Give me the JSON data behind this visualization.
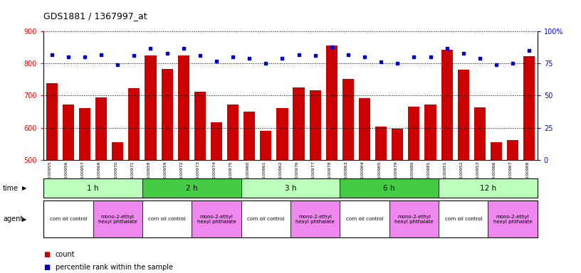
{
  "title": "GDS1881 / 1367997_at",
  "samples": [
    "GSM100955",
    "GSM100956",
    "GSM100957",
    "GSM100969",
    "GSM100970",
    "GSM100971",
    "GSM100958",
    "GSM100959",
    "GSM100972",
    "GSM100973",
    "GSM100974",
    "GSM100975",
    "GSM100960",
    "GSM100961",
    "GSM100962",
    "GSM100976",
    "GSM100977",
    "GSM100978",
    "GSM100963",
    "GSM100964",
    "GSM100965",
    "GSM100979",
    "GSM100980",
    "GSM100981",
    "GSM100951",
    "GSM100952",
    "GSM100953",
    "GSM100966",
    "GSM100967",
    "GSM100968"
  ],
  "counts": [
    738,
    672,
    661,
    695,
    554,
    724,
    826,
    782,
    826,
    712,
    616,
    671,
    649,
    590,
    661,
    726,
    717,
    857,
    751,
    691,
    604,
    597,
    666,
    672,
    843,
    780,
    663,
    554,
    562,
    822
  ],
  "percentiles": [
    82,
    80,
    80,
    82,
    74,
    81,
    87,
    83,
    87,
    81,
    77,
    80,
    79,
    75,
    79,
    82,
    81,
    88,
    82,
    80,
    76,
    75,
    80,
    80,
    87,
    83,
    79,
    74,
    75,
    85
  ],
  "time_groups": [
    {
      "label": "1 h",
      "start": 0,
      "end": 6
    },
    {
      "label": "2 h",
      "start": 6,
      "end": 12
    },
    {
      "label": "3 h",
      "start": 12,
      "end": 18
    },
    {
      "label": "6 h",
      "start": 18,
      "end": 24
    },
    {
      "label": "12 h",
      "start": 24,
      "end": 30
    }
  ],
  "agent_groups": [
    {
      "label": "corn oil control",
      "start": 0,
      "end": 3,
      "color": "#ffffff"
    },
    {
      "label": "mono-2-ethyl\nhexyl phthalate",
      "start": 3,
      "end": 6,
      "color": "#ee88ee"
    },
    {
      "label": "corn oil control",
      "start": 6,
      "end": 9,
      "color": "#ffffff"
    },
    {
      "label": "mono-2-ethyl\nhexyl phthalate",
      "start": 9,
      "end": 12,
      "color": "#ee88ee"
    },
    {
      "label": "corn oil control",
      "start": 12,
      "end": 15,
      "color": "#ffffff"
    },
    {
      "label": "mono-2-ethyl\nhexyl phthalate",
      "start": 15,
      "end": 18,
      "color": "#ee88ee"
    },
    {
      "label": "corn oil control",
      "start": 18,
      "end": 21,
      "color": "#ffffff"
    },
    {
      "label": "mono-2-ethyl\nhexyl phthalate",
      "start": 21,
      "end": 24,
      "color": "#ee88ee"
    },
    {
      "label": "corn oil control",
      "start": 24,
      "end": 27,
      "color": "#ffffff"
    },
    {
      "label": "mono-2-ethyl\nhexyl phthalate",
      "start": 27,
      "end": 30,
      "color": "#ee88ee"
    }
  ],
  "bar_color": "#cc0000",
  "dot_color": "#0000cc",
  "ylim_left": [
    500,
    900
  ],
  "ylim_right": [
    0,
    100
  ],
  "yticks_left": [
    500,
    600,
    700,
    800,
    900
  ],
  "yticks_right": [
    0,
    25,
    50,
    75,
    100
  ],
  "time_bg_color": "#bbffbb",
  "time_bg_color_dark": "#44cc44",
  "bg_color": "#ffffff"
}
